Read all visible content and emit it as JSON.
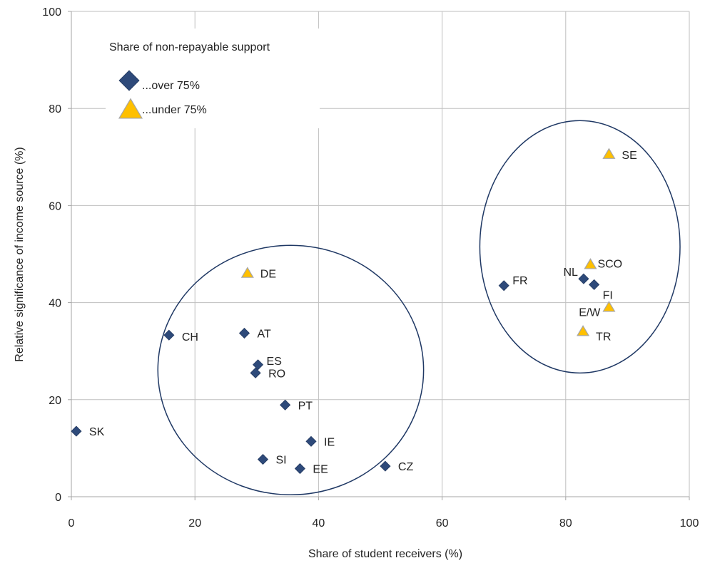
{
  "chart_data": {
    "type": "scatter",
    "title": "",
    "xlabel": "Share of student receivers (%)",
    "ylabel": "Relative significance of income source (%)",
    "xlim": [
      0,
      100
    ],
    "ylim": [
      0,
      100
    ],
    "xticks": [
      0,
      20,
      40,
      60,
      80,
      100
    ],
    "yticks": [
      0,
      20,
      40,
      60,
      80,
      100
    ],
    "grid": true,
    "legend": {
      "title": "Share of non-repayable support",
      "placement": "top-left",
      "entries": [
        {
          "label": "...over 75%",
          "series": "over"
        },
        {
          "label": "...under 75%",
          "series": "under"
        }
      ]
    },
    "series": [
      {
        "key": "over",
        "marker": "diamond",
        "color": "#2e4a7a",
        "points": [
          {
            "label": "SK",
            "x": 0.8,
            "y": 13.5
          },
          {
            "label": "CH",
            "x": 15.8,
            "y": 33.3
          },
          {
            "label": "AT",
            "x": 28.0,
            "y": 33.7
          },
          {
            "label": "ES",
            "x": 30.2,
            "y": 27.2
          },
          {
            "label": "RO",
            "x": 29.8,
            "y": 25.5
          },
          {
            "label": "PT",
            "x": 34.6,
            "y": 18.9
          },
          {
            "label": "IE",
            "x": 38.8,
            "y": 11.4
          },
          {
            "label": "SI",
            "x": 31.0,
            "y": 7.7
          },
          {
            "label": "EE",
            "x": 37.0,
            "y": 5.8
          },
          {
            "label": "CZ",
            "x": 50.8,
            "y": 6.3
          },
          {
            "label": "FR",
            "x": 70.0,
            "y": 43.5
          },
          {
            "label": "NL",
            "x": 82.9,
            "y": 44.9
          },
          {
            "label": "FI",
            "x": 84.6,
            "y": 43.7
          }
        ]
      },
      {
        "key": "under",
        "marker": "triangle",
        "color": "#ffc000",
        "points": [
          {
            "label": "DE",
            "x": 28.5,
            "y": 46.0
          },
          {
            "label": "SE",
            "x": 87.0,
            "y": 70.5
          },
          {
            "label": "SCO",
            "x": 84.0,
            "y": 47.8
          },
          {
            "label": "E/W",
            "x": 87.0,
            "y": 39.0
          },
          {
            "label": "TR",
            "x": 82.8,
            "y": 34.0
          }
        ]
      }
    ],
    "ellipses": [
      {
        "cx": 35.5,
        "cy": 26.1,
        "rx": 21.5,
        "ry": 25.7
      },
      {
        "cx": 82.3,
        "cy": 51.5,
        "rx": 16.2,
        "ry": 26.0
      }
    ]
  }
}
